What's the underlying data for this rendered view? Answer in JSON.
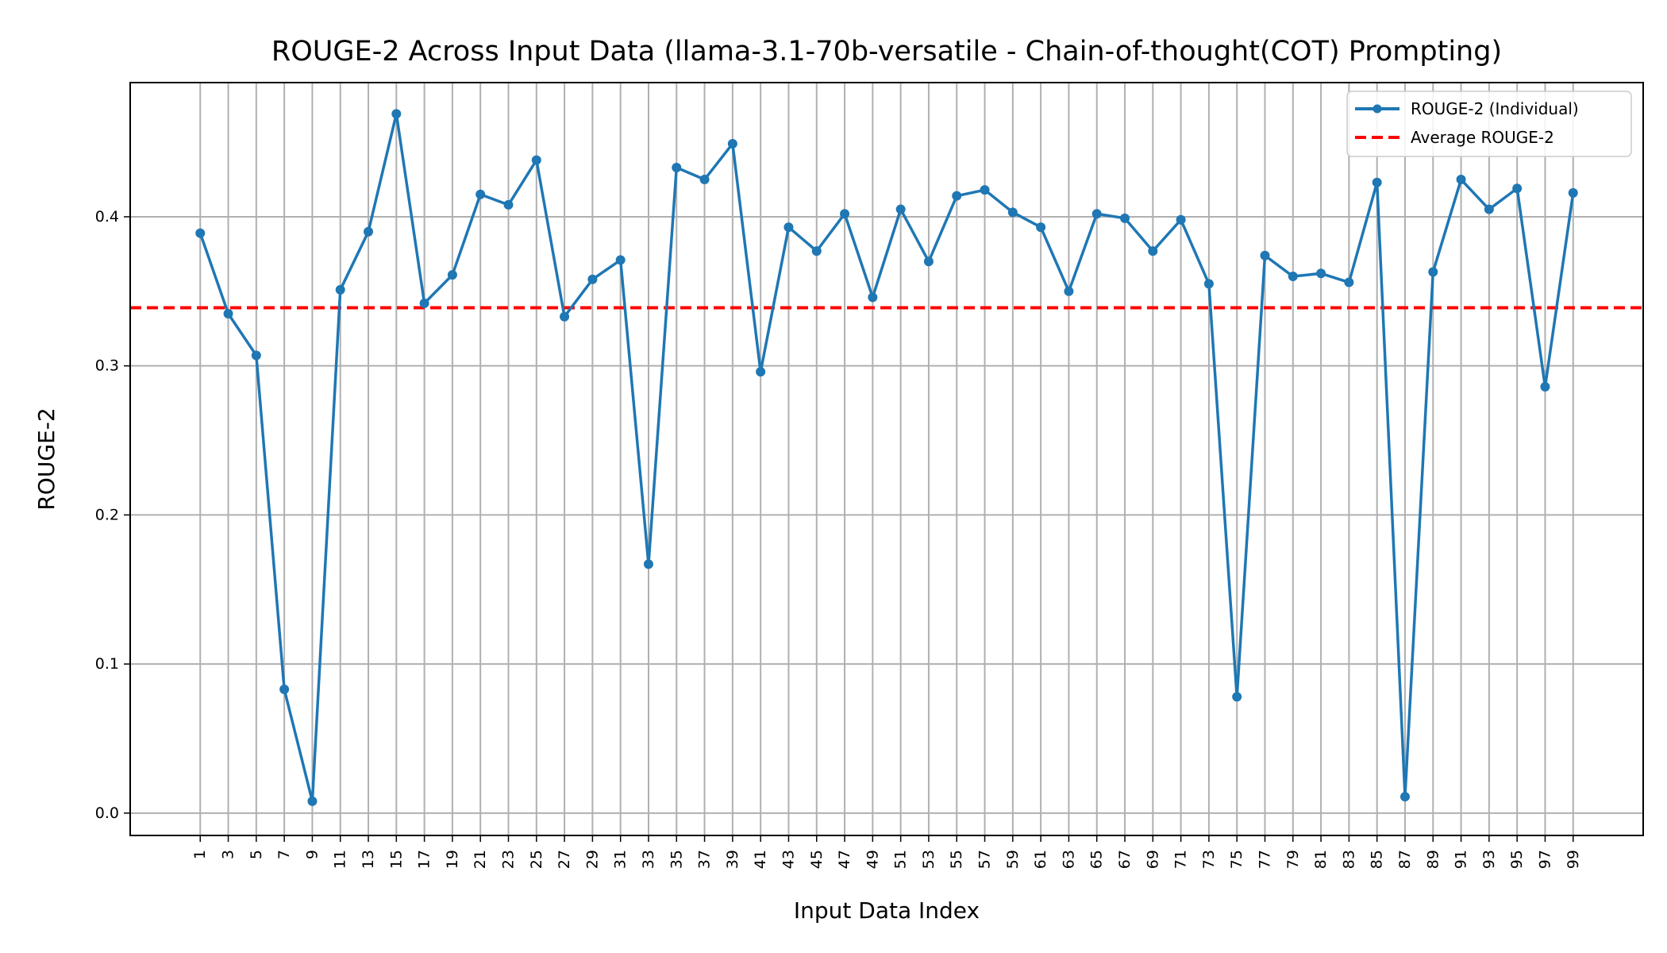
{
  "chart_data": {
    "type": "line",
    "title": "ROUGE-2 Across Input Data (llama-3.1-70b-versatile - Chain-of-thought(COT) Prompting)",
    "xlabel": "Input Data Index",
    "ylabel": "ROUGE-2",
    "xlim": [
      -4,
      104
    ],
    "ylim": [
      -0.015,
      0.49
    ],
    "xticks": [
      1,
      3,
      5,
      7,
      9,
      11,
      13,
      15,
      17,
      19,
      21,
      23,
      25,
      27,
      29,
      31,
      33,
      35,
      37,
      39,
      41,
      43,
      45,
      47,
      49,
      51,
      53,
      55,
      57,
      59,
      61,
      63,
      65,
      67,
      69,
      71,
      73,
      75,
      77,
      79,
      81,
      83,
      85,
      87,
      89,
      91,
      93,
      95,
      97,
      99
    ],
    "yticks": [
      0.0,
      0.1,
      0.2,
      0.3,
      0.4
    ],
    "ytick_labels": [
      "0.0",
      "0.1",
      "0.2",
      "0.3",
      "0.4"
    ],
    "grid": true,
    "legend_position": "top-right",
    "series": [
      {
        "name": "ROUGE-2 (Individual)",
        "color": "#1f77b4",
        "style": "solid-with-markers",
        "x": [
          1,
          3,
          5,
          7,
          9,
          11,
          13,
          15,
          17,
          19,
          21,
          23,
          25,
          27,
          29,
          31,
          33,
          35,
          37,
          39,
          41,
          43,
          45,
          47,
          49,
          51,
          53,
          55,
          57,
          59,
          61,
          63,
          65,
          67,
          69,
          71,
          73,
          75,
          77,
          79,
          81,
          83,
          85,
          87,
          89,
          91,
          93,
          95,
          97,
          99
        ],
        "values": [
          0.389,
          0.335,
          0.307,
          0.083,
          0.008,
          0.351,
          0.39,
          0.469,
          0.342,
          0.361,
          0.415,
          0.408,
          0.438,
          0.333,
          0.358,
          0.371,
          0.167,
          0.433,
          0.425,
          0.449,
          0.296,
          0.393,
          0.377,
          0.402,
          0.346,
          0.405,
          0.37,
          0.414,
          0.418,
          0.403,
          0.393,
          0.35,
          0.402,
          0.399,
          0.377,
          0.398,
          0.355,
          0.078,
          0.374,
          0.36,
          0.362,
          0.356,
          0.423,
          0.011,
          0.363,
          0.425,
          0.405,
          0.419,
          0.286,
          0.416
        ]
      },
      {
        "name": "Average ROUGE-2",
        "color": "#ff0000",
        "style": "dashed",
        "value": 0.339
      }
    ]
  }
}
